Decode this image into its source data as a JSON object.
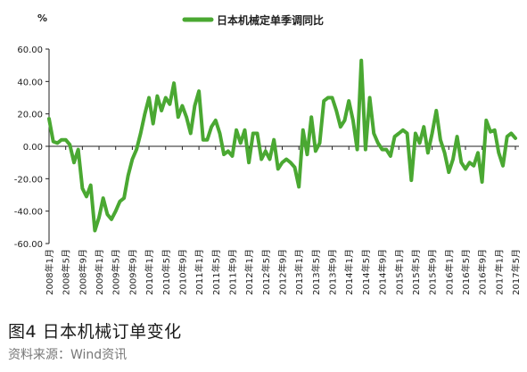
{
  "figure": {
    "title": "图4 日本机械订单变化",
    "source": "资料来源：Wind资讯"
  },
  "colors": {
    "series": "#4aa832",
    "axis": "#222222"
  },
  "chart_data": {
    "type": "line",
    "unit_label": "%",
    "title": "",
    "xlabel": "",
    "ylabel": "",
    "ylim": [
      -60,
      60
    ],
    "y_ticks": [
      -60,
      -40,
      -20,
      0,
      20,
      40,
      60
    ],
    "y_tick_labels": [
      "-60.00",
      "-40.00",
      "-20.00",
      "0.00",
      "20.00",
      "40.00",
      "60.00"
    ],
    "grid": false,
    "legend": "top-center",
    "x_tick_labels": [
      "2008年1月",
      "2008年5月",
      "2008年9月",
      "2009年1月",
      "2009年5月",
      "2009年9月",
      "2010年1月",
      "2010年5月",
      "2010年9月",
      "2011年1月",
      "2011年5月",
      "2011年9月",
      "2012年1月",
      "2012年5月",
      "2012年9月",
      "2013年1月",
      "2013年5月",
      "2013年9月",
      "2014年1月",
      "2014年5月",
      "2014年9月",
      "2015年1月",
      "2015年5月",
      "2015年9月",
      "2016年1月",
      "2016年5月",
      "2016年9月",
      "2017年1月",
      "2017年5月"
    ],
    "series": [
      {
        "name": "日本机械定单季调同比",
        "values": [
          17,
          3,
          2,
          4,
          4,
          1,
          -10,
          -2,
          -26,
          -31,
          -24,
          -52,
          -44,
          -32,
          -42,
          -45,
          -40,
          -34,
          -32,
          -18,
          -8,
          -2,
          8,
          20,
          30,
          14,
          31,
          22,
          30,
          26,
          39,
          18,
          25,
          18,
          8,
          25,
          34,
          4,
          4,
          12,
          16,
          8,
          -5,
          -3,
          -6,
          10,
          2,
          10,
          -10,
          8,
          8,
          -8,
          -3,
          -8,
          4,
          -14,
          -10,
          -8,
          -10,
          -13,
          -25,
          10,
          -5,
          18,
          -3,
          2,
          28,
          30,
          30,
          22,
          12,
          16,
          28,
          16,
          -2,
          53,
          -2,
          30,
          8,
          2,
          -2,
          -2,
          -6,
          6,
          8,
          10,
          8,
          -21,
          8,
          2,
          12,
          -4,
          8,
          22,
          4,
          -4,
          -16,
          -8,
          6,
          -10,
          -14,
          -10,
          -12,
          -4,
          -22,
          16,
          9,
          10,
          -4,
          -12,
          6,
          8,
          5
        ]
      }
    ]
  }
}
